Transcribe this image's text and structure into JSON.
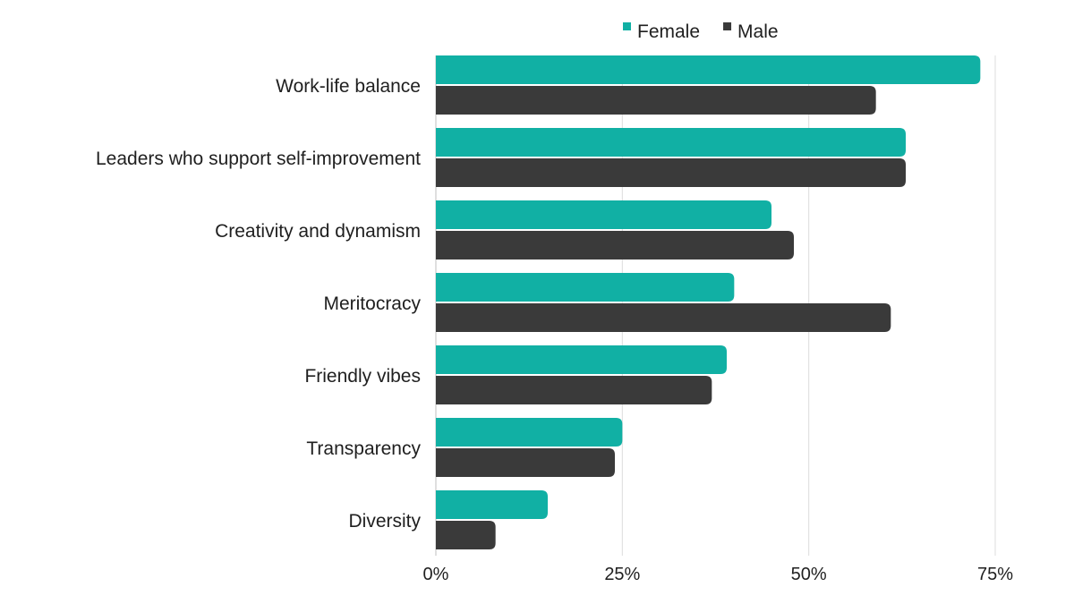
{
  "chart_data": {
    "type": "bar",
    "orientation": "horizontal",
    "categories": [
      "Work-life balance",
      "Leaders who support self-improvement",
      "Creativity and dynamism",
      "Meritocracy",
      "Friendly vibes",
      "Transparency",
      "Diversity"
    ],
    "series": [
      {
        "name": "Female",
        "color": "#11b0a4",
        "values": [
          73,
          63,
          45,
          40,
          39,
          25,
          15
        ]
      },
      {
        "name": "Male",
        "color": "#3a3a3a",
        "values": [
          59,
          63,
          48,
          61,
          37,
          24,
          8
        ]
      }
    ],
    "xlim": [
      0,
      75
    ],
    "xticks": [
      0,
      25,
      50,
      75
    ],
    "xtick_labels": [
      "0%",
      "25%",
      "50%",
      "75%"
    ],
    "title": "",
    "xlabel": "",
    "ylabel": "",
    "grid": "vertical",
    "legend_position": "top"
  }
}
